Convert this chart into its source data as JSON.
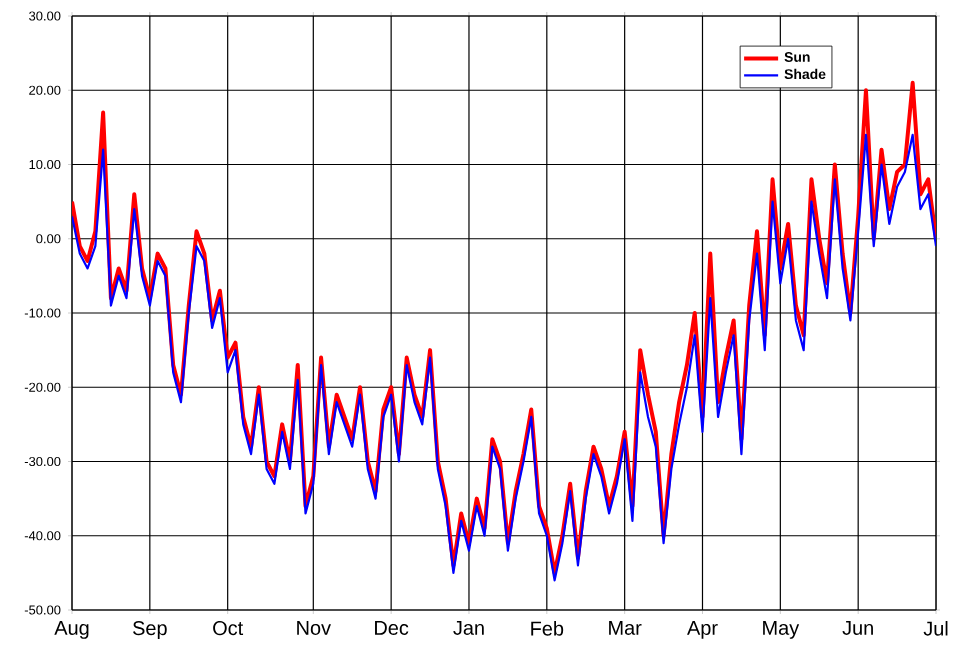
{
  "chart_data": {
    "type": "line",
    "categories": [
      "Aug",
      null,
      null,
      null,
      null,
      null,
      null,
      null,
      null,
      null,
      "Sep",
      null,
      null,
      null,
      null,
      null,
      null,
      null,
      null,
      null,
      "Oct",
      null,
      null,
      null,
      null,
      null,
      null,
      null,
      null,
      null,
      null,
      "Nov",
      null,
      null,
      null,
      null,
      null,
      null,
      null,
      null,
      null,
      "Dec",
      null,
      null,
      null,
      null,
      null,
      null,
      null,
      null,
      null,
      "Jan",
      null,
      null,
      null,
      null,
      null,
      null,
      null,
      null,
      null,
      "Feb",
      null,
      null,
      null,
      null,
      null,
      null,
      null,
      null,
      null,
      "Mar",
      null,
      null,
      null,
      null,
      null,
      null,
      null,
      null,
      null,
      "Apr",
      null,
      null,
      null,
      null,
      null,
      null,
      null,
      null,
      null,
      "May",
      null,
      null,
      null,
      null,
      null,
      null,
      null,
      null,
      null,
      "Jun",
      null,
      null,
      null,
      null,
      null,
      null,
      null,
      null,
      null,
      "Jul"
    ],
    "series": [
      {
        "name": "Sun",
        "color": "#ff0000",
        "values": [
          5,
          -1,
          -3,
          1,
          17,
          -8,
          -4,
          -7,
          6,
          -4,
          -8,
          -2,
          -4,
          -17,
          -21,
          -9,
          1,
          -2,
          -11,
          -7,
          -16,
          -14,
          -24,
          -28,
          -20,
          -30,
          -32,
          -25,
          -30,
          -17,
          -36,
          -32,
          -16,
          -28,
          -21,
          -24,
          -27,
          -20,
          -30,
          -34,
          -23,
          -20,
          -29,
          -16,
          -21,
          -24,
          -15,
          -30,
          -35,
          -44,
          -37,
          -41,
          -35,
          -39,
          -27,
          -30,
          -41,
          -34,
          -29,
          -23,
          -36,
          -39,
          -45,
          -40,
          -33,
          -43,
          -34,
          -28,
          -31,
          -36,
          -32,
          -26,
          -36,
          -15,
          -21,
          -26,
          -40,
          -29,
          -22,
          -17,
          -10,
          -24,
          -2,
          -22,
          -16,
          -11,
          -27,
          -9,
          1,
          -13,
          8,
          -4,
          2,
          -9,
          -13,
          8,
          0,
          -6,
          10,
          -2,
          -10,
          3,
          20,
          0,
          12,
          4,
          9,
          10,
          21,
          6,
          8,
          0
        ]
      },
      {
        "name": "Shade",
        "color": "#0000ff",
        "values": [
          3,
          -2,
          -4,
          -1,
          12,
          -9,
          -5,
          -8,
          4,
          -5,
          -9,
          -3,
          -5,
          -18,
          -22,
          -10,
          -1,
          -3,
          -12,
          -8,
          -18,
          -15,
          -25,
          -29,
          -21,
          -31,
          -33,
          -26,
          -31,
          -19,
          -37,
          -33,
          -17,
          -29,
          -22,
          -25,
          -28,
          -21,
          -31,
          -35,
          -24,
          -21,
          -30,
          -17,
          -22,
          -25,
          -16,
          -31,
          -36,
          -45,
          -38,
          -42,
          -36,
          -40,
          -28,
          -31,
          -42,
          -35,
          -30,
          -24,
          -37,
          -40,
          -46,
          -41,
          -34,
          -44,
          -35,
          -29,
          -32,
          -37,
          -33,
          -27,
          -38,
          -18,
          -24,
          -28,
          -41,
          -31,
          -25,
          -20,
          -13,
          -26,
          -8,
          -24,
          -18,
          -13,
          -29,
          -11,
          -2,
          -15,
          5,
          -6,
          0,
          -11,
          -15,
          5,
          -2,
          -8,
          8,
          -4,
          -11,
          1,
          14,
          -1,
          10,
          2,
          7,
          9,
          14,
          4,
          6,
          -1
        ]
      }
    ],
    "ylim": [
      -50,
      30
    ],
    "yticks": [
      {
        "value": -50,
        "label": "-50.00"
      },
      {
        "value": -40,
        "label": "-40.00"
      },
      {
        "value": -30,
        "label": "-30.00"
      },
      {
        "value": -20,
        "label": "-20.00"
      },
      {
        "value": -10,
        "label": "-10.00"
      },
      {
        "value": 0,
        "label": "0.00"
      },
      {
        "value": 10,
        "label": "10.00"
      },
      {
        "value": 20,
        "label": "20.00"
      },
      {
        "value": 30,
        "label": "30.00"
      }
    ],
    "grid": true,
    "legend": "top right",
    "marker": "none",
    "line_style": "solid"
  }
}
